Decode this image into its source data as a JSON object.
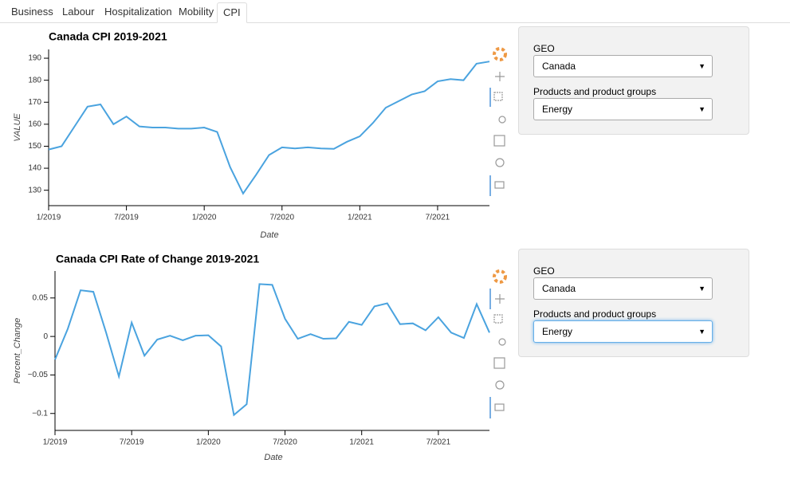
{
  "tabs": [
    "Business",
    "Labour",
    "Hospitalization",
    "Mobility",
    "CPI"
  ],
  "active_tab": "CPI",
  "chart_data": [
    {
      "type": "line",
      "title": "Canada CPI 2019-2021",
      "x_label": "Date",
      "y_label": "VALUE",
      "x": [
        "2019-01",
        "2019-02",
        "2019-03",
        "2019-04",
        "2019-05",
        "2019-06",
        "2019-07",
        "2019-08",
        "2019-09",
        "2019-10",
        "2019-11",
        "2019-12",
        "2020-01",
        "2020-02",
        "2020-03",
        "2020-04",
        "2020-05",
        "2020-06",
        "2020-07",
        "2020-08",
        "2020-09",
        "2020-10",
        "2020-11",
        "2020-12",
        "2021-01",
        "2021-02",
        "2021-03",
        "2021-04",
        "2021-05",
        "2021-06",
        "2021-07",
        "2021-08",
        "2021-09",
        "2021-10",
        "2021-11"
      ],
      "series": [
        {
          "name": "VALUE",
          "color": "#4aa3df",
          "values": [
            148.5,
            150,
            159,
            168,
            169,
            160,
            163.5,
            159,
            158.5,
            158.5,
            158,
            158,
            158.5,
            156.5,
            140.5,
            128.5,
            137,
            146,
            149.5,
            149,
            149.5,
            149,
            148.8,
            152,
            154.5,
            160.5,
            167.5,
            170.5,
            173.5,
            175,
            179.5,
            180.5,
            180,
            187.5,
            188.5
          ]
        }
      ],
      "xlim": [
        "2019-01",
        "2021-11"
      ],
      "xticks": [
        {
          "value": "2019-01",
          "label": "1/2019"
        },
        {
          "value": "2019-07",
          "label": "7/2019"
        },
        {
          "value": "2020-01",
          "label": "1/2020"
        },
        {
          "value": "2020-07",
          "label": "7/2020"
        },
        {
          "value": "2021-01",
          "label": "1/2021"
        },
        {
          "value": "2021-07",
          "label": "7/2021"
        }
      ],
      "ylim": [
        123,
        194
      ],
      "yticks": [
        130,
        140,
        150,
        160,
        170,
        180,
        190
      ],
      "grid": false
    },
    {
      "type": "line",
      "title": "Canada CPI Rate of Change 2019-2021",
      "x_label": "Date",
      "y_label": "Percent_Change",
      "x": [
        "2019-01",
        "2019-02",
        "2019-03",
        "2019-04",
        "2019-05",
        "2019-06",
        "2019-07",
        "2019-08",
        "2019-09",
        "2019-10",
        "2019-11",
        "2019-12",
        "2020-01",
        "2020-02",
        "2020-03",
        "2020-04",
        "2020-05",
        "2020-06",
        "2020-07",
        "2020-08",
        "2020-09",
        "2020-10",
        "2020-11",
        "2020-12",
        "2021-01",
        "2021-02",
        "2021-03",
        "2021-04",
        "2021-05",
        "2021-06",
        "2021-07",
        "2021-08",
        "2021-09",
        "2021-10",
        "2021-11"
      ],
      "series": [
        {
          "name": "Percent_Change",
          "color": "#4aa3df",
          "values": [
            -0.03,
            0.01,
            0.06,
            0.058,
            0.005,
            -0.052,
            0.018,
            -0.025,
            -0.004,
            0.001,
            -0.005,
            0.001,
            0.0015,
            -0.013,
            -0.102,
            -0.088,
            0.068,
            0.067,
            0.023,
            -0.003,
            0.003,
            -0.003,
            -0.0025,
            0.019,
            0.015,
            0.039,
            0.043,
            0.016,
            0.017,
            0.008,
            0.025,
            0.005,
            -0.002,
            0.042,
            0.005
          ]
        }
      ],
      "xlim": [
        "2019-01",
        "2021-11"
      ],
      "xticks": [
        {
          "value": "2019-01",
          "label": "1/2019"
        },
        {
          "value": "2019-07",
          "label": "7/2019"
        },
        {
          "value": "2020-01",
          "label": "1/2020"
        },
        {
          "value": "2020-07",
          "label": "7/2020"
        },
        {
          "value": "2021-01",
          "label": "1/2021"
        },
        {
          "value": "2021-07",
          "label": "7/2021"
        }
      ],
      "ylim": [
        -0.122,
        0.085
      ],
      "yticks": [
        {
          "value": -0.1,
          "label": "−0.1"
        },
        {
          "value": -0.05,
          "label": "−0.05"
        },
        0,
        0.05
      ],
      "grid": false
    }
  ],
  "controls": [
    {
      "geo_label": "GEO",
      "geo_value": "Canada",
      "product_label": "Products and product groups",
      "product_value": "Energy"
    },
    {
      "geo_label": "GEO",
      "geo_value": "Canada",
      "product_label": "Products and product groups",
      "product_value": "Energy"
    }
  ]
}
